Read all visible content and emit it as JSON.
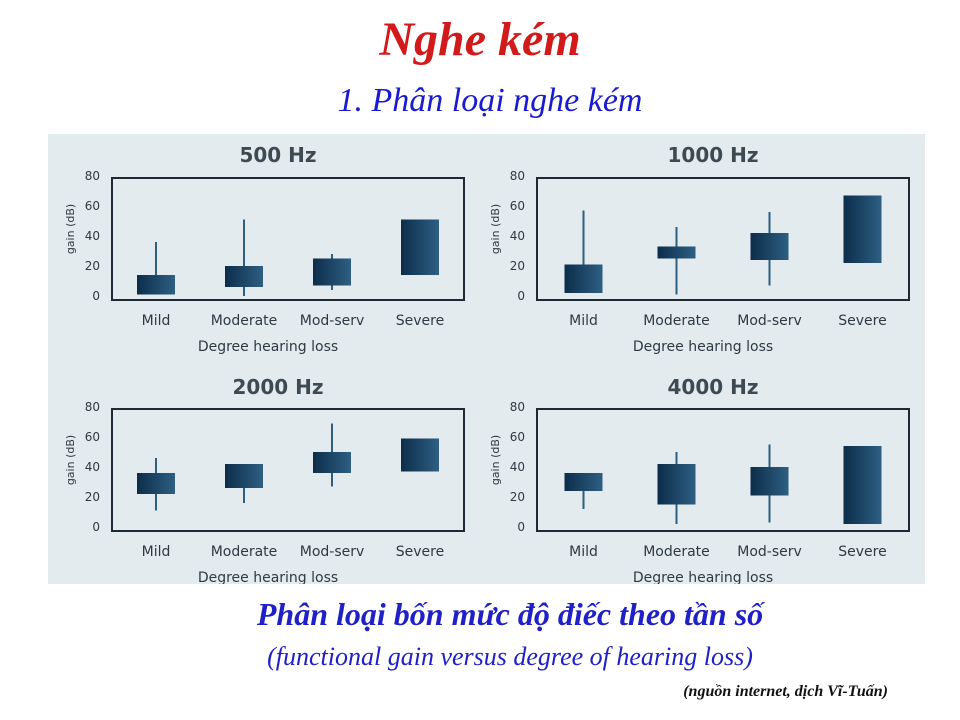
{
  "slide": {
    "title": "Nghe kém",
    "subtitle": "1. Phân loại nghe kém",
    "caption": "Phân loại bốn mức độ điếc theo tần số",
    "caption_en": "(functional gain versus degree of hearing loss)",
    "source": "(nguồn internet, dịch Vĩ-Tuấn)"
  },
  "colors": {
    "title": "#d21a1a",
    "subtitle": "#1a1ad0",
    "panel_bg": "#e3ebef",
    "box_dark": "#0c2d4a",
    "box_light": "#2e5f82",
    "frame": "#1e2a33"
  },
  "chart_data": [
    {
      "type": "box",
      "title": "500 Hz",
      "xlabel": "Degree hearing loss",
      "ylabel": "gain (dB)",
      "ylim": [
        0,
        80
      ],
      "yticks": [
        "80",
        "60",
        "40",
        "20",
        "0"
      ],
      "categories": [
        "Mild",
        "Moderate",
        "Mod-serv",
        "Severe"
      ],
      "boxes": [
        {
          "low": 1,
          "high": 14,
          "whisker_low": 1,
          "whisker_high": 36
        },
        {
          "low": 6,
          "high": 20,
          "whisker_low": 0,
          "whisker_high": 51
        },
        {
          "low": 7,
          "high": 25,
          "whisker_low": 4,
          "whisker_high": 28
        },
        {
          "low": 14,
          "high": 51,
          "whisker_low": 14,
          "whisker_high": 51
        }
      ]
    },
    {
      "type": "box",
      "title": "1000 Hz",
      "xlabel": "Degree hearing loss",
      "ylabel": "gain (dB)",
      "ylim": [
        0,
        80
      ],
      "yticks": [
        "80",
        "60",
        "40",
        "20",
        "0"
      ],
      "categories": [
        "Mild",
        "Moderate",
        "Mod-serv",
        "Severe"
      ],
      "boxes": [
        {
          "low": 2,
          "high": 21,
          "whisker_low": 2,
          "whisker_high": 57
        },
        {
          "low": 25,
          "high": 33,
          "whisker_low": 1,
          "whisker_high": 46
        },
        {
          "low": 24,
          "high": 42,
          "whisker_low": 7,
          "whisker_high": 56
        },
        {
          "low": 22,
          "high": 67,
          "whisker_low": 22,
          "whisker_high": 67
        }
      ]
    },
    {
      "type": "box",
      "title": "2000 Hz",
      "xlabel": "Degree hearing loss",
      "ylabel": "gain (dB)",
      "ylim": [
        0,
        80
      ],
      "yticks": [
        "80",
        "60",
        "40",
        "20",
        "0"
      ],
      "categories": [
        "Mild",
        "Moderate",
        "Mod-serv",
        "Severe"
      ],
      "boxes": [
        {
          "low": 22,
          "high": 36,
          "whisker_low": 11,
          "whisker_high": 46
        },
        {
          "low": 26,
          "high": 42,
          "whisker_low": 16,
          "whisker_high": 42
        },
        {
          "low": 36,
          "high": 50,
          "whisker_low": 27,
          "whisker_high": 69
        },
        {
          "low": 37,
          "high": 59,
          "whisker_low": 37,
          "whisker_high": 59
        }
      ]
    },
    {
      "type": "box",
      "title": "4000 Hz",
      "xlabel": "Degree hearing loss",
      "ylabel": "gain (dB)",
      "ylim": [
        0,
        80
      ],
      "yticks": [
        "80",
        "60",
        "40",
        "20",
        "0"
      ],
      "categories": [
        "Mild",
        "Moderate",
        "Mod-serv",
        "Severe"
      ],
      "boxes": [
        {
          "low": 24,
          "high": 36,
          "whisker_low": 12,
          "whisker_high": 36
        },
        {
          "low": 15,
          "high": 42,
          "whisker_low": 2,
          "whisker_high": 50
        },
        {
          "low": 21,
          "high": 40,
          "whisker_low": 3,
          "whisker_high": 55
        },
        {
          "low": 2,
          "high": 54,
          "whisker_low": 2,
          "whisker_high": 54
        }
      ]
    }
  ]
}
